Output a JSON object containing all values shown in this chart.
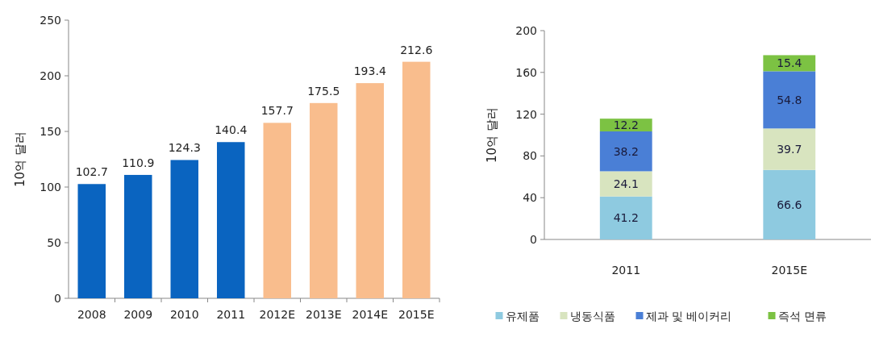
{
  "chart_data": [
    {
      "type": "bar",
      "ylabel": "10억 달러",
      "categories": [
        "2008",
        "2009",
        "2010",
        "2011",
        "2012E",
        "2013E",
        "2014E",
        "2015E"
      ],
      "values": [
        102.7,
        110.9,
        124.3,
        140.4,
        157.7,
        175.5,
        193.4,
        212.6
      ],
      "colors": [
        "#0a64c0",
        "#0a64c0",
        "#0a64c0",
        "#0a64c0",
        "#f9bd8d",
        "#f9bd8d",
        "#f9bd8d",
        "#f9bd8d"
      ],
      "ylim": [
        0,
        250
      ],
      "yticks": [
        0,
        50,
        100,
        150,
        200,
        250
      ],
      "data_labels": true
    },
    {
      "type": "bar",
      "stacked": true,
      "ylabel": "10억 달러",
      "categories": [
        "2011",
        "2015E"
      ],
      "series": [
        {
          "name": "유제품",
          "color": "#8ecae0",
          "values": [
            41.2,
            66.6
          ]
        },
        {
          "name": "냉동식품",
          "color": "#d8e4bf",
          "values": [
            24.1,
            39.7
          ]
        },
        {
          "name": "제과 및 베이커리",
          "color": "#4a7fd6",
          "values": [
            38.2,
            54.8
          ]
        },
        {
          "name": "즉석 면류",
          "color": "#7cc243",
          "values": [
            12.2,
            15.4
          ]
        }
      ],
      "ylim": [
        0,
        200
      ],
      "yticks": [
        0,
        40,
        80,
        120,
        160,
        200
      ],
      "data_labels": true,
      "legend": "bottom"
    }
  ]
}
